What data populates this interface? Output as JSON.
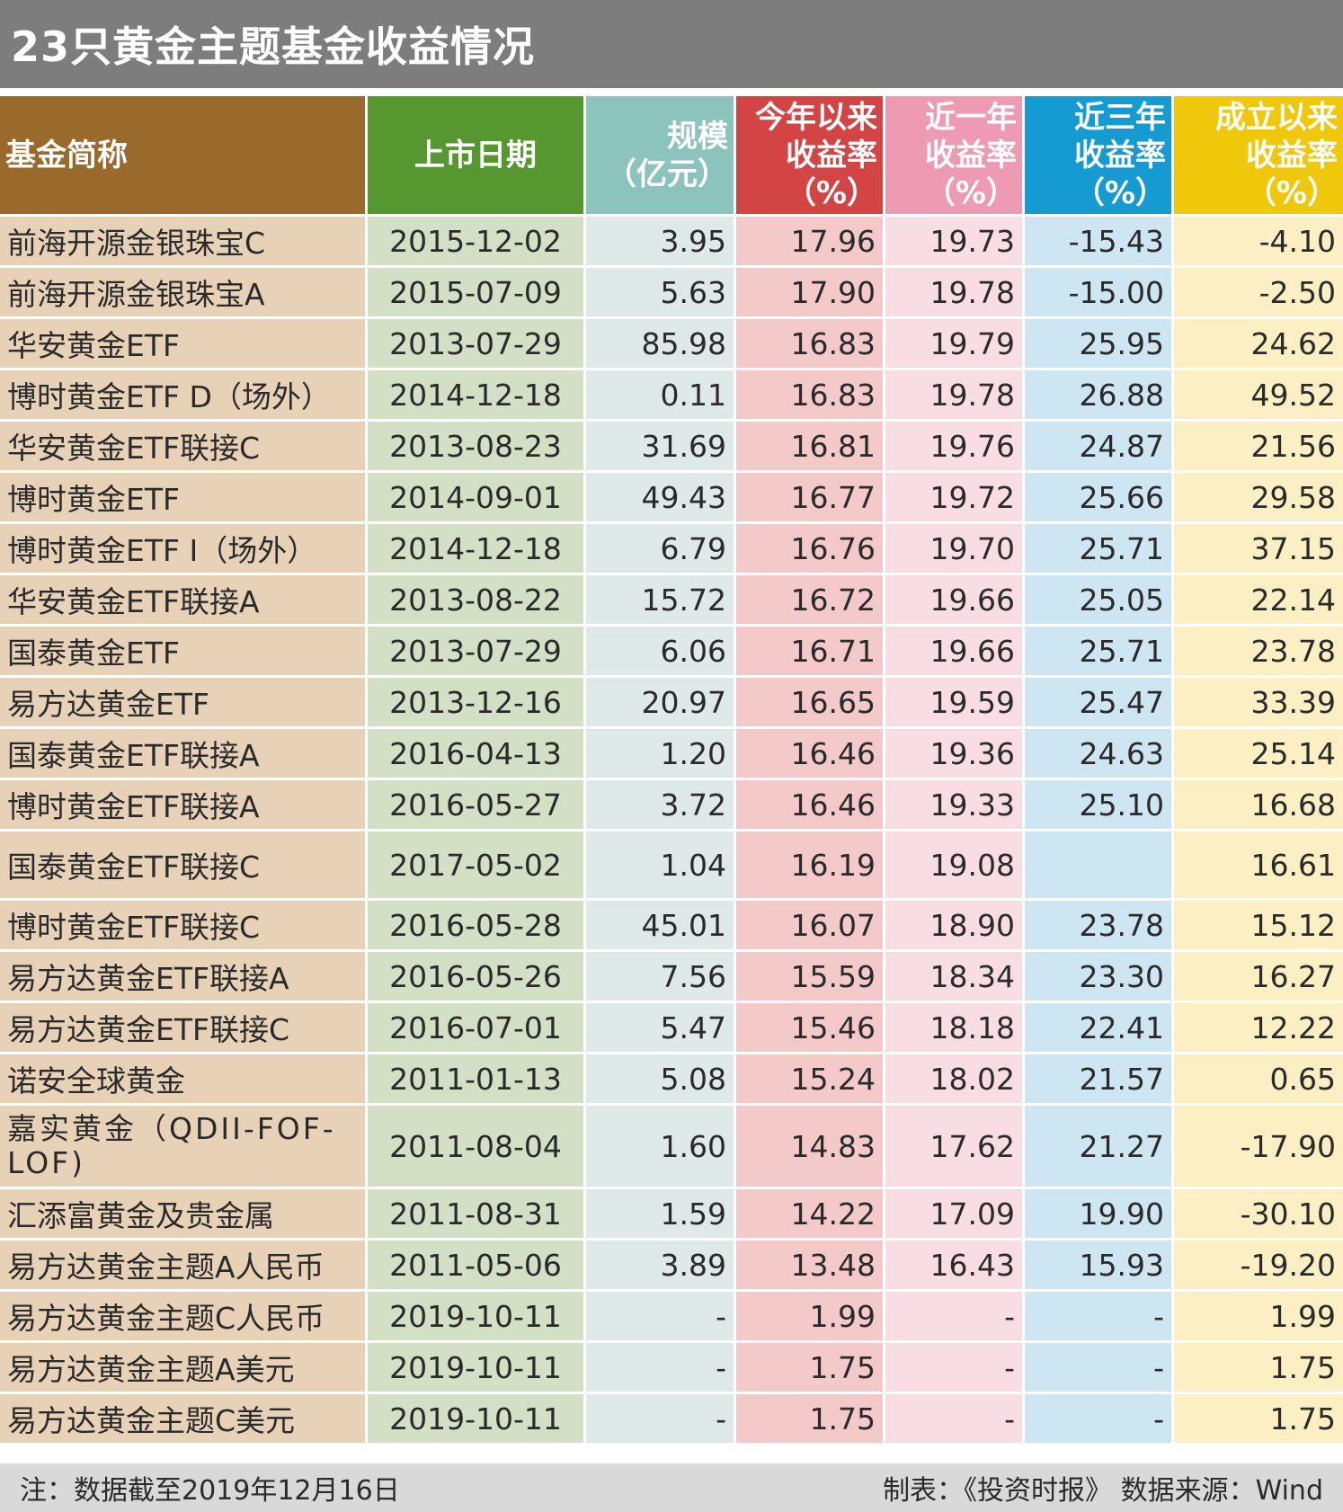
{
  "title": "23只黄金主题基金收益情况",
  "headers": {
    "name": "基金简称",
    "date": "上市日期",
    "size_1": "规模",
    "size_2": "（亿元）",
    "ytd_1": "今年以来",
    "ytd_2": "收益率",
    "ytd_3": "（%）",
    "y1_1": "近一年",
    "y1_2": "收益率",
    "y1_3": "（%）",
    "y3_1": "近三年",
    "y3_2": "收益率",
    "y3_3": "（%）",
    "inc_1": "成立以来",
    "inc_2": "收益率",
    "inc_3": "（%）"
  },
  "rows": [
    {
      "name": "前海开源金银珠宝C",
      "date": "2015-12-02",
      "size": "3.95",
      "ytd": "17.96",
      "y1": "19.73",
      "y3": "-15.43",
      "inc": "-4.10"
    },
    {
      "name": "前海开源金银珠宝A",
      "date": "2015-07-09",
      "size": "5.63",
      "ytd": "17.90",
      "y1": "19.78",
      "y3": "-15.00",
      "inc": "-2.50"
    },
    {
      "name": "华安黄金ETF",
      "date": "2013-07-29",
      "size": "85.98",
      "ytd": "16.83",
      "y1": "19.79",
      "y3": "25.95",
      "inc": "24.62"
    },
    {
      "name": "博时黄金ETF D（场外）",
      "date": "2014-12-18",
      "size": "0.11",
      "ytd": "16.83",
      "y1": "19.78",
      "y3": "26.88",
      "inc": "49.52"
    },
    {
      "name": "华安黄金ETF联接C",
      "date": "2013-08-23",
      "size": "31.69",
      "ytd": "16.81",
      "y1": "19.76",
      "y3": "24.87",
      "inc": "21.56"
    },
    {
      "name": "博时黄金ETF",
      "date": "2014-09-01",
      "size": "49.43",
      "ytd": "16.77",
      "y1": "19.72",
      "y3": "25.66",
      "inc": "29.58"
    },
    {
      "name": "博时黄金ETF I（场外）",
      "date": "2014-12-18",
      "size": "6.79",
      "ytd": "16.76",
      "y1": "19.70",
      "y3": "25.71",
      "inc": "37.15"
    },
    {
      "name": "华安黄金ETF联接A",
      "date": "2013-08-22",
      "size": "15.72",
      "ytd": "16.72",
      "y1": "19.66",
      "y3": "25.05",
      "inc": "22.14"
    },
    {
      "name": "国泰黄金ETF",
      "date": "2013-07-29",
      "size": "6.06",
      "ytd": "16.71",
      "y1": "19.66",
      "y3": "25.71",
      "inc": "23.78"
    },
    {
      "name": "易方达黄金ETF",
      "date": "2013-12-16",
      "size": "20.97",
      "ytd": "16.65",
      "y1": "19.59",
      "y3": "25.47",
      "inc": "33.39"
    },
    {
      "name": "国泰黄金ETF联接A",
      "date": "2016-04-13",
      "size": "1.20",
      "ytd": "16.46",
      "y1": "19.36",
      "y3": "24.63",
      "inc": "25.14"
    },
    {
      "name": "博时黄金ETF联接A",
      "date": "2016-05-27",
      "size": "3.72",
      "ytd": "16.46",
      "y1": "19.33",
      "y3": "25.10",
      "inc": "16.68"
    },
    {
      "name": "国泰黄金ETF联接C",
      "date": "2017-05-02",
      "size": "1.04",
      "ytd": "16.19",
      "y1": "19.08",
      "y3": "",
      "inc": "16.61"
    },
    {
      "name": "博时黄金ETF联接C",
      "date": "2016-05-28",
      "size": "45.01",
      "ytd": "16.07",
      "y1": "18.90",
      "y3": "23.78",
      "inc": "15.12"
    },
    {
      "name": "易方达黄金ETF联接A",
      "date": "2016-05-26",
      "size": "7.56",
      "ytd": "15.59",
      "y1": "18.34",
      "y3": "23.30",
      "inc": "16.27"
    },
    {
      "name": "易方达黄金ETF联接C",
      "date": "2016-07-01",
      "size": "5.47",
      "ytd": "15.46",
      "y1": "18.18",
      "y3": "22.41",
      "inc": "12.22"
    },
    {
      "name": "诺安全球黄金",
      "date": "2011-01-13",
      "size": "5.08",
      "ytd": "15.24",
      "y1": "18.02",
      "y3": "21.57",
      "inc": "0.65"
    },
    {
      "name": "嘉实黄金（QDII-FOF-LOF)",
      "date": "2011-08-04",
      "size": "1.60",
      "ytd": "14.83",
      "y1": "17.62",
      "y3": "21.27",
      "inc": "-17.90"
    },
    {
      "name": "汇添富黄金及贵金属",
      "date": "2011-08-31",
      "size": "1.59",
      "ytd": "14.22",
      "y1": "17.09",
      "y3": "19.90",
      "inc": "-30.10"
    },
    {
      "name": "易方达黄金主题A人民币",
      "date": "2011-05-06",
      "size": "3.89",
      "ytd": "13.48",
      "y1": "16.43",
      "y3": "15.93",
      "inc": "-19.20"
    },
    {
      "name": "易方达黄金主题C人民币",
      "date": "2019-10-11",
      "size": "-",
      "ytd": "1.99",
      "y1": "-",
      "y3": "-",
      "inc": "1.99"
    },
    {
      "name": "易方达黄金主题A美元",
      "date": "2019-10-11",
      "size": "-",
      "ytd": "1.75",
      "y1": "-",
      "y3": "-",
      "inc": "1.75"
    },
    {
      "name": "易方达黄金主题C美元",
      "date": "2019-10-11",
      "size": "-",
      "ytd": "1.75",
      "y1": "-",
      "y3": "-",
      "inc": "1.75"
    }
  ],
  "footer": {
    "note": "注：数据截至2019年12月16日",
    "credit": "制表：《投资时报》 数据来源：Wind"
  },
  "colors": {
    "title_bg": "#7d7d7d",
    "name_header": "#9a6a2d",
    "date_header": "#56982f",
    "size_header": "#8cc3bc",
    "ytd_header": "#d34545",
    "y1_header": "#ef9ab3",
    "y3_header": "#159ad2",
    "inc_header": "#efc80c"
  }
}
